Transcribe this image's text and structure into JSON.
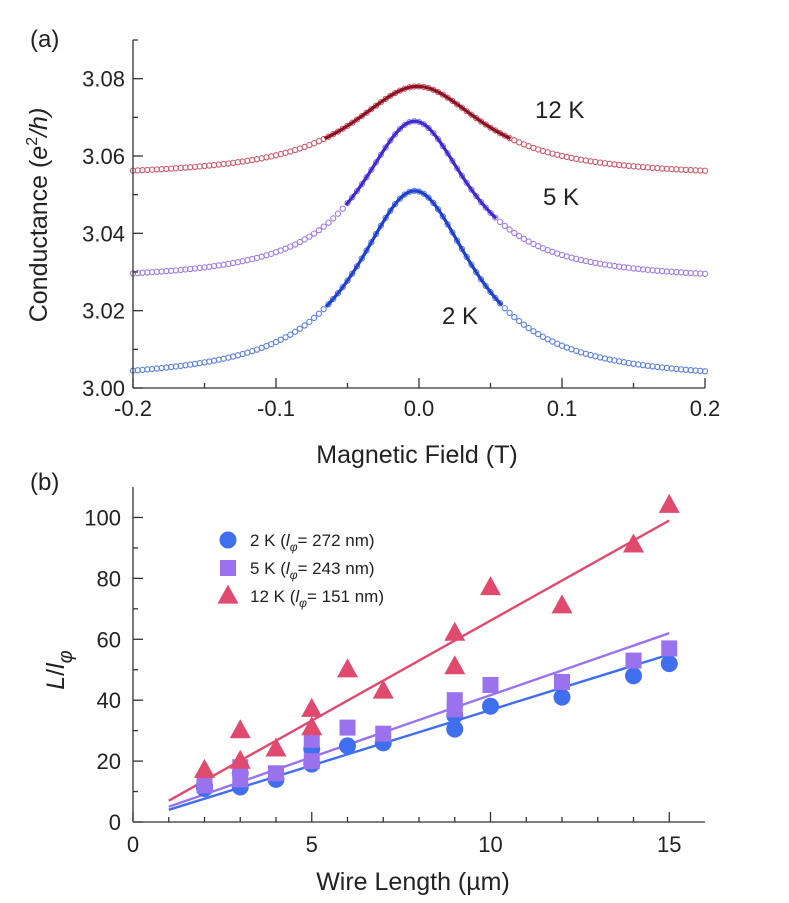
{
  "chart_data": [
    {
      "id": "a",
      "panel_label": "(a)",
      "type": "scatter",
      "xlabel": "Magnetic Field (T)",
      "ylabel": "Conductance (e²/h)",
      "ylabel_parts": {
        "main": "Conductance (",
        "base": "e",
        "sup": "2",
        "tail": "/h)"
      },
      "xlim": [
        -0.2,
        0.2
      ],
      "ylim": [
        3.0,
        3.09
      ],
      "xticks": [
        -0.2,
        -0.1,
        0.0,
        0.1,
        0.2
      ],
      "xtick_labels": [
        "-0.2",
        "-0.1",
        "0.0",
        "0.1",
        "0.2"
      ],
      "yticks": [
        3.0,
        3.02,
        3.04,
        3.06,
        3.08
      ],
      "ytick_labels": [
        "3.00",
        "3.02",
        "3.04",
        "3.06",
        "3.08"
      ],
      "series": [
        {
          "name": "2 K",
          "marker_color": "#5a7fe0",
          "fit_color": "#1f3fcf",
          "base": 3.0015,
          "peak": 0.0495,
          "center": -0.003,
          "width": 0.05,
          "fit_range": [
            -0.065,
            0.058
          ],
          "annotation": "2 K"
        },
        {
          "name": "5 K",
          "marker_color": "#a27ae6",
          "fit_color": "#3a2bd0",
          "base": 3.0275,
          "peak": 0.0415,
          "center": -0.003,
          "width": 0.046,
          "fit_range": [
            -0.051,
            0.054
          ],
          "annotation": "5 K"
        },
        {
          "name": "12 K",
          "marker_color": "#d05a6c",
          "fit_color": "#8a1222",
          "base": 3.0545,
          "peak": 0.0235,
          "center": -0.001,
          "width": 0.056,
          "fit_range": [
            -0.066,
            0.064
          ],
          "annotation": "12 K"
        }
      ]
    },
    {
      "id": "b",
      "panel_label": "(b)",
      "type": "scatter",
      "xlabel": "Wire Length (µm)",
      "ylabel": "L/lφ",
      "ylabel_parts": {
        "L": "L",
        "slash": "/",
        "l": "l",
        "sub": "φ"
      },
      "xlim": [
        0,
        16
      ],
      "ylim": [
        0,
        110
      ],
      "xticks": [
        0,
        5,
        10,
        15
      ],
      "xtick_labels": [
        "0",
        "5",
        "10",
        "15"
      ],
      "yticks": [
        0,
        20,
        40,
        60,
        80,
        100
      ],
      "ytick_labels": [
        "0",
        "20",
        "40",
        "60",
        "80",
        "100"
      ],
      "series": [
        {
          "name": "2 K (lφ= 272 nm)",
          "legend_parts": {
            "prefix": "2 K (",
            "l": "l",
            "sub": "φ",
            "rest": "= 272 nm)"
          },
          "marker": "circle",
          "color": "#3f6fef",
          "x": [
            2,
            2,
            3,
            3,
            4,
            5,
            5,
            6,
            7,
            9,
            9,
            10,
            12,
            14,
            15
          ],
          "y": [
            11,
            12,
            11.5,
            16,
            14,
            19,
            24,
            25,
            26,
            30.5,
            35,
            38,
            41,
            48,
            52
          ],
          "fit": {
            "x": [
              1,
              15
            ],
            "y": [
              4,
              55
            ]
          }
        },
        {
          "name": "5 K (lφ= 243 nm)",
          "legend_parts": {
            "prefix": "5 K (",
            "l": "l",
            "sub": "φ",
            "rest": "= 243 nm)"
          },
          "marker": "square",
          "color": "#9a72ee",
          "x": [
            2,
            3,
            3,
            4,
            5,
            5,
            6,
            7,
            9,
            9,
            10,
            12,
            14,
            15
          ],
          "y": [
            12,
            14,
            18,
            16,
            20,
            27,
            31,
            29,
            37,
            40,
            45,
            46,
            53,
            57
          ],
          "fit": {
            "x": [
              1,
              15
            ],
            "y": [
              5,
              62
            ]
          }
        },
        {
          "name": "12 K (lφ= 151 nm)",
          "legend_parts": {
            "prefix": "12 K (",
            "l": "l",
            "sub": "φ",
            "rest": "= 151 nm)"
          },
          "marker": "triangle",
          "color": "#e04a6e",
          "x": [
            2,
            3,
            3,
            4,
            5,
            5,
            6,
            7,
            9,
            9,
            10,
            12,
            14,
            15
          ],
          "y": [
            17,
            20,
            30,
            24,
            31,
            37,
            50,
            43,
            51,
            62,
            77,
            71,
            91,
            104
          ],
          "fit": {
            "x": [
              1,
              15
            ],
            "y": [
              7,
              99
            ]
          }
        }
      ]
    }
  ]
}
